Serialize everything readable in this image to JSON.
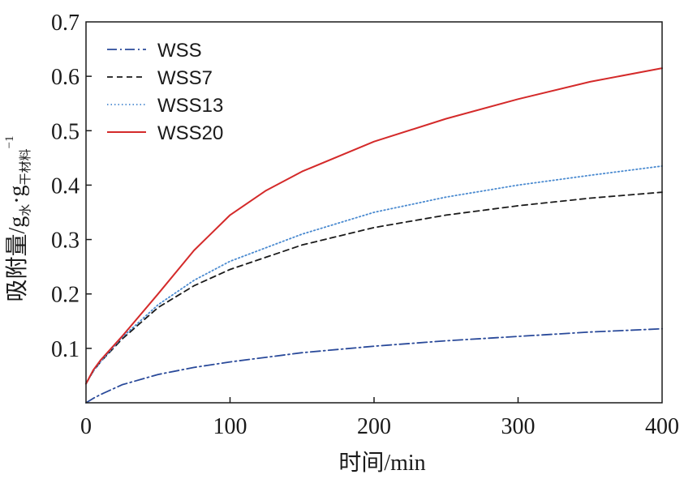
{
  "chart_data": {
    "type": "line",
    "title": "",
    "xlabel": "时间/min",
    "ylabel": {
      "main": "吸附量/g",
      "sub1": "水",
      "mid": "·g",
      "sub2": "干材料",
      "sup": "−1"
    },
    "xlim": [
      0,
      400
    ],
    "ylim": [
      0,
      0.7
    ],
    "xticks": [
      0,
      100,
      200,
      300,
      400
    ],
    "yticks": [
      0.1,
      0.2,
      0.3,
      0.4,
      0.5,
      0.6,
      0.7
    ],
    "xtick_labels": [
      "0",
      "100",
      "200",
      "300",
      "400"
    ],
    "ytick_labels": [
      "0.1",
      "0.2",
      "0.3",
      "0.4",
      "0.5",
      "0.6",
      "0.7"
    ],
    "legend_position": "top-left",
    "series": [
      {
        "name": "WSS",
        "color": "#2a4a9a",
        "style": "dashdot",
        "x": [
          0,
          5,
          10,
          25,
          50,
          75,
          100,
          150,
          200,
          250,
          300,
          350,
          400
        ],
        "y": [
          0.0,
          0.008,
          0.015,
          0.033,
          0.052,
          0.065,
          0.075,
          0.092,
          0.104,
          0.114,
          0.122,
          0.13,
          0.136
        ]
      },
      {
        "name": "WSS7",
        "color": "#1a1a1a",
        "style": "dashed",
        "x": [
          0,
          5,
          10,
          25,
          50,
          75,
          100,
          150,
          200,
          250,
          300,
          350,
          400
        ],
        "y": [
          0.035,
          0.058,
          0.075,
          0.117,
          0.175,
          0.215,
          0.245,
          0.29,
          0.322,
          0.345,
          0.362,
          0.376,
          0.387
        ]
      },
      {
        "name": "WSS13",
        "color": "#4a8ad0",
        "style": "dotted",
        "x": [
          0,
          5,
          10,
          25,
          50,
          75,
          100,
          150,
          200,
          250,
          300,
          350,
          400
        ],
        "y": [
          0.035,
          0.058,
          0.075,
          0.12,
          0.18,
          0.225,
          0.26,
          0.31,
          0.35,
          0.378,
          0.4,
          0.418,
          0.435
        ]
      },
      {
        "name": "WSS20",
        "color": "#d42a2a",
        "style": "solid",
        "x": [
          0,
          5,
          10,
          25,
          50,
          75,
          100,
          125,
          150,
          200,
          250,
          300,
          350,
          400
        ],
        "y": [
          0.035,
          0.06,
          0.078,
          0.122,
          0.2,
          0.28,
          0.345,
          0.39,
          0.425,
          0.48,
          0.522,
          0.558,
          0.59,
          0.615
        ]
      }
    ]
  }
}
